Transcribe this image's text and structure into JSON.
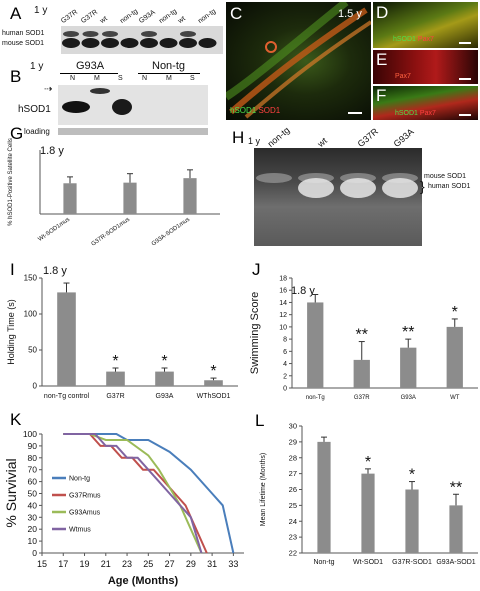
{
  "panels": {
    "A": {
      "label": "A",
      "age": "1 y",
      "lanes": [
        "G37R",
        "G37R",
        "wt",
        "non-tg",
        "G93A",
        "non-tg",
        "wt",
        "non-tg"
      ],
      "row_labels": [
        "human SOD1",
        "mouse SOD1"
      ]
    },
    "B": {
      "label": "B",
      "age": "1 y",
      "groups": [
        "G93A",
        "Non-tg"
      ],
      "lanes": [
        "N",
        "M",
        "S",
        "N",
        "M",
        "S"
      ],
      "row_labels": [
        "hSOD1",
        "loading"
      ]
    },
    "C": {
      "label": "C",
      "age": "1.5 y",
      "stain_labels": [
        "hSOD1",
        "SOD1"
      ]
    },
    "D": {
      "label": "D",
      "stain_labels": [
        "hSOD1",
        "Pax7"
      ]
    },
    "E": {
      "label": "E",
      "stain_labels": [
        "Pax7"
      ]
    },
    "F": {
      "label": "F",
      "stain_labels": [
        "hSOD1",
        "Pax7"
      ]
    },
    "G": {
      "label": "G",
      "age": "1.8 y"
    },
    "H": {
      "label": "H",
      "age": "1 y",
      "lanes": [
        "non-tg",
        "wt",
        "G37R",
        "G93A"
      ],
      "row_labels": [
        "mouse SOD1",
        "human SOD1"
      ]
    },
    "I": {
      "label": "I",
      "age": "1.8 y"
    },
    "J": {
      "label": "J",
      "age": "1.8 y"
    },
    "K": {
      "label": "K"
    },
    "L": {
      "label": "L"
    }
  },
  "chart_data": [
    {
      "id": "G",
      "type": "bar",
      "categories": [
        "Wt-SOD1mus",
        "G37R-SOD1mus",
        "G93A-SOD1mus"
      ],
      "values": [
        48,
        49,
        56
      ],
      "errors": [
        10,
        14,
        13
      ],
      "ylabel": "% hSOD1-Positive Satellite Cells",
      "ylim": [
        0,
        100
      ],
      "bar_color": "#8c8c8c"
    },
    {
      "id": "I",
      "type": "bar",
      "categories": [
        "non-Tg control",
        "G37R",
        "G93A",
        "WThSOD1"
      ],
      "values": [
        130,
        20,
        20,
        8
      ],
      "errors": [
        13,
        5,
        5,
        3
      ],
      "significance": [
        "",
        "*",
        "*",
        "*"
      ],
      "ylabel": "Holding Time (s)",
      "yticks": [
        0,
        50,
        100,
        150
      ],
      "ylim": [
        0,
        150
      ],
      "bar_color": "#8c8c8c"
    },
    {
      "id": "J",
      "type": "bar",
      "categories": [
        "non-Tg",
        "G37R",
        "G93A",
        "WT"
      ],
      "values": [
        14,
        4.6,
        6.6,
        10
      ],
      "errors": [
        1.3,
        3.0,
        1.4,
        1.3
      ],
      "significance": [
        "",
        "**",
        "**",
        "*"
      ],
      "ylabel": "Swimming Score",
      "yticks": [
        0,
        2,
        4,
        6,
        8,
        10,
        12,
        14,
        16,
        18
      ],
      "ylim": [
        0,
        18
      ],
      "bar_color": "#8c8c8c"
    },
    {
      "id": "K",
      "type": "line",
      "xlabel": "Age (Months)",
      "ylabel": "% Survivial",
      "xticks": [
        15,
        17,
        19,
        21,
        23,
        25,
        27,
        29,
        31,
        33
      ],
      "yticks": [
        0,
        10,
        20,
        30,
        40,
        50,
        60,
        70,
        80,
        90,
        100
      ],
      "xlim": [
        15,
        34
      ],
      "ylim": [
        0,
        100
      ],
      "series": [
        {
          "name": "Non-tg",
          "color": "#4a7ebb",
          "x": [
            17,
            22,
            23,
            25,
            27,
            29,
            31,
            32,
            33
          ],
          "y": [
            100,
            100,
            95,
            95,
            85,
            70,
            50,
            40,
            0
          ]
        },
        {
          "name": "G37Rmus",
          "color": "#c0504d",
          "x": [
            17,
            19.5,
            20.5,
            21.5,
            22.5,
            23.5,
            24.5,
            25.5,
            26.5,
            27.5,
            28.5,
            29.5,
            30.5
          ],
          "y": [
            100,
            100,
            90,
            90,
            80,
            80,
            70,
            70,
            60,
            50,
            40,
            20,
            0
          ]
        },
        {
          "name": "G93Amus",
          "color": "#9bbb59",
          "x": [
            17,
            19.5,
            21,
            23,
            25,
            26,
            27,
            28,
            29,
            30
          ],
          "y": [
            100,
            100,
            95,
            95,
            82,
            70,
            55,
            40,
            20,
            0
          ]
        },
        {
          "name": "Wtmus",
          "color": "#8064a2",
          "x": [
            17,
            20,
            21,
            22,
            23,
            24,
            25,
            26,
            27,
            28,
            29,
            30
          ],
          "y": [
            100,
            100,
            90,
            90,
            80,
            80,
            70,
            60,
            50,
            40,
            30,
            0
          ]
        }
      ]
    },
    {
      "id": "L",
      "type": "bar",
      "categories": [
        "Non-tg",
        "Wt-SOD1",
        "G37R-SOD1",
        "G93A-SOD1"
      ],
      "values": [
        29,
        27,
        26,
        25
      ],
      "errors": [
        0.3,
        0.3,
        0.5,
        0.7
      ],
      "significance": [
        "",
        "*",
        "*",
        "**"
      ],
      "ylabel": "Mean Lifetime (Months)",
      "yticks": [
        22,
        23,
        24,
        25,
        26,
        27,
        28,
        29,
        30
      ],
      "ylim": [
        22,
        30
      ],
      "bar_color": "#8c8c8c"
    }
  ]
}
